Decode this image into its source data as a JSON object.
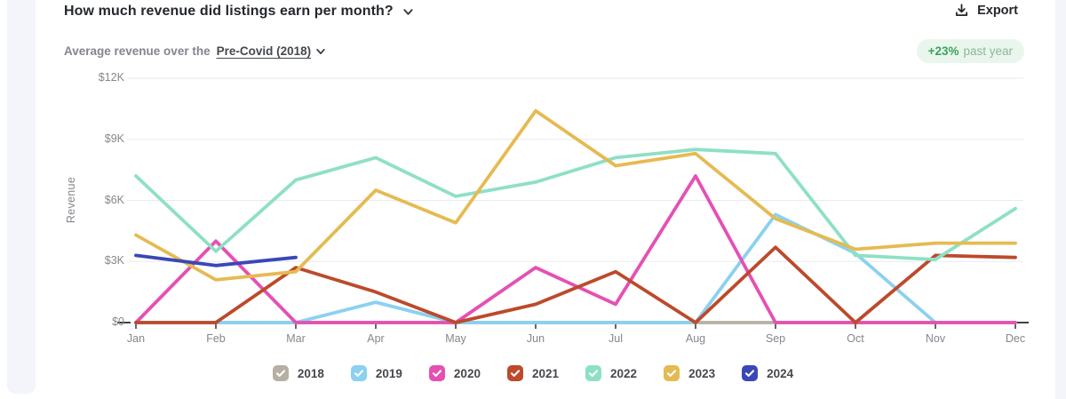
{
  "page": {
    "background": "#ffffff",
    "frame_color": "#f4f5fa"
  },
  "header": {
    "title": "How much revenue did listings earn per month?",
    "export_label": "Export"
  },
  "subheader": {
    "prefix": "Average revenue over the",
    "period_link": "Pre-Covid (2018)"
  },
  "trend_badge": {
    "delta": "+23%",
    "label": "past year",
    "delta_color": "#3aa45c",
    "label_color": "#8fb59a",
    "background": "#e9f6ed"
  },
  "chart_data": {
    "type": "line",
    "title": "How much revenue did listings earn per month?",
    "xlabel": "",
    "ylabel": "Revenue",
    "categories": [
      "Jan",
      "Feb",
      "Mar",
      "Apr",
      "May",
      "Jun",
      "Jul",
      "Aug",
      "Sep",
      "Oct",
      "Nov",
      "Dec"
    ],
    "y_ticks": [
      {
        "label": "$12K",
        "value": 12000
      },
      {
        "label": "$9K",
        "value": 9000
      },
      {
        "label": "$6K",
        "value": 6000
      },
      {
        "label": "$3K",
        "value": 3000
      },
      {
        "label": "$0",
        "value": 0
      }
    ],
    "ylim": [
      0,
      12000
    ],
    "grid": true,
    "grid_color": "#e9eaee",
    "legend_position": "bottom",
    "series": [
      {
        "name": "2018",
        "color": "#b6b0a4",
        "values": [
          0,
          0,
          0,
          0,
          0,
          0,
          0,
          0,
          0,
          0,
          0,
          0
        ]
      },
      {
        "name": "2019",
        "color": "#8bd1f0",
        "values": [
          0,
          0,
          0,
          1000,
          0,
          0,
          0,
          0,
          5300,
          3400,
          0,
          0
        ]
      },
      {
        "name": "2020",
        "color": "#e550b4",
        "values": [
          0,
          4000,
          0,
          0,
          0,
          2700,
          900,
          7200,
          0,
          0,
          0,
          0
        ]
      },
      {
        "name": "2021",
        "color": "#bc4a2b",
        "values": [
          0,
          0,
          2700,
          1500,
          0,
          900,
          2500,
          0,
          3700,
          0,
          3300,
          3200
        ]
      },
      {
        "name": "2022",
        "color": "#8ee0c5",
        "values": [
          7200,
          3500,
          7000,
          8100,
          6200,
          6900,
          8100,
          8500,
          8300,
          3300,
          3100,
          5600
        ]
      },
      {
        "name": "2023",
        "color": "#e6ba52",
        "values": [
          4300,
          2100,
          2500,
          6500,
          4900,
          10400,
          7700,
          8300,
          5100,
          3600,
          3900,
          3900
        ]
      },
      {
        "name": "2024",
        "color": "#3a47b8",
        "values": [
          3300,
          2800,
          3200,
          null,
          null,
          null,
          null,
          null,
          null,
          null,
          null,
          null
        ]
      }
    ]
  }
}
